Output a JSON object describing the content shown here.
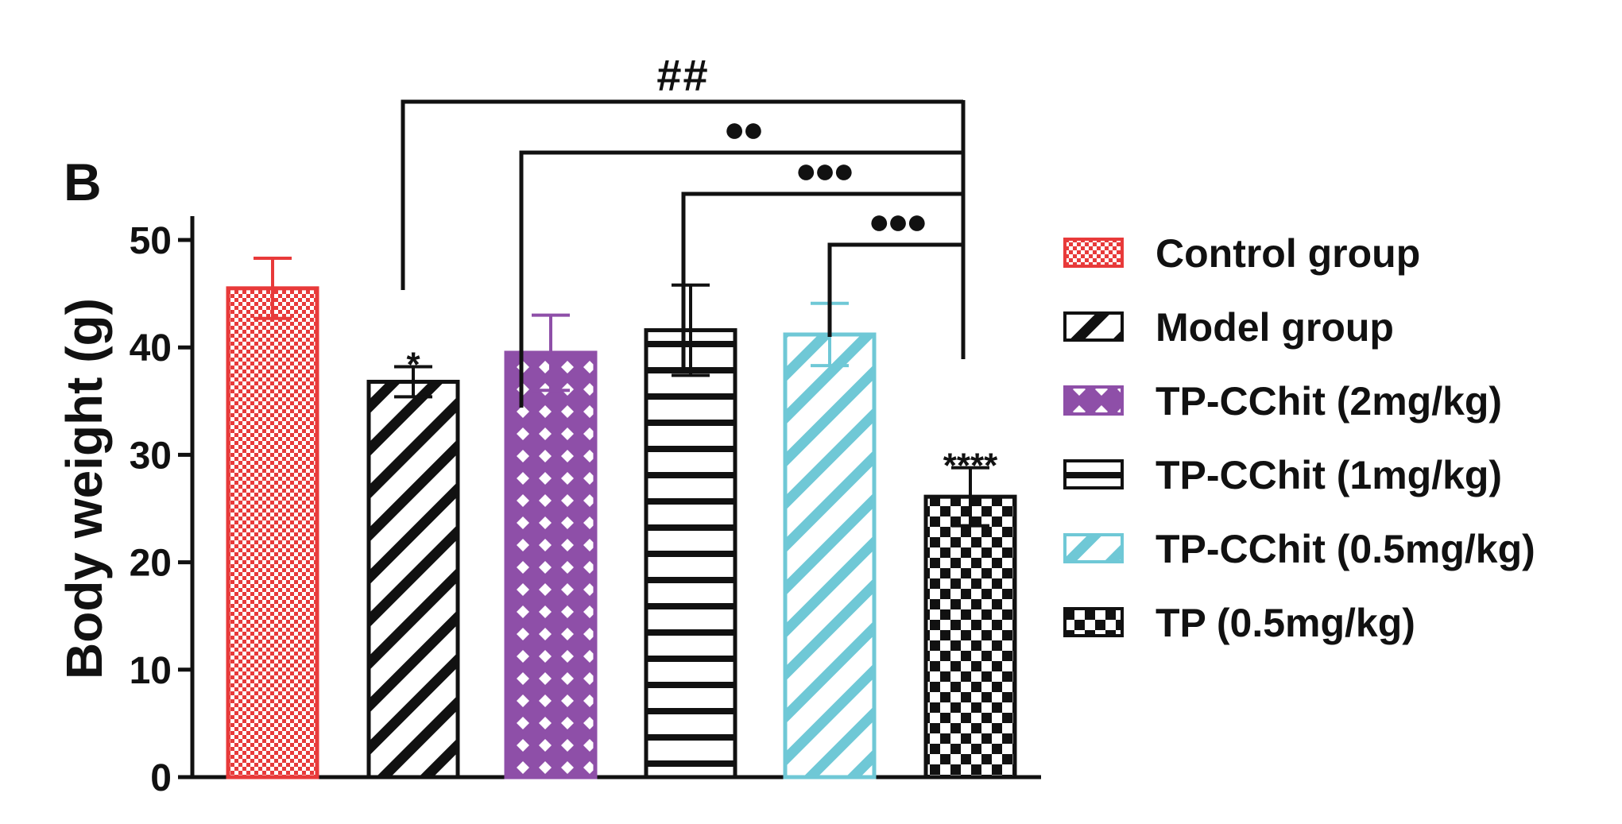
{
  "chart_data": {
    "type": "bar",
    "panel_label": "B",
    "title": "",
    "xlabel": "",
    "ylabel": "Body weight (g)",
    "ylim": [
      0,
      50
    ],
    "yticks": [
      0,
      10,
      20,
      30,
      40,
      50
    ],
    "grid": false,
    "legend_position": "right",
    "categories": [
      "Control group",
      "Model group",
      "TP-CChit (2mg/kg)",
      "TP-CChit (1mg/kg)",
      "TP-CChit (0.5mg/kg)",
      "TP (0.5mg/kg)"
    ],
    "values": [
      45.5,
      36.8,
      39.5,
      41.6,
      41.2,
      26.1
    ],
    "errors": [
      2.8,
      1.4,
      3.5,
      4.2,
      2.9,
      2.7
    ],
    "series_styles": [
      {
        "pattern": "small-checker",
        "color": "#e83a3a"
      },
      {
        "pattern": "diagonal",
        "color": "#111111"
      },
      {
        "pattern": "diamond-lattice",
        "color": "#8e4fa8"
      },
      {
        "pattern": "horizontal",
        "color": "#111111"
      },
      {
        "pattern": "diagonal",
        "color": "#6fc8d6"
      },
      {
        "pattern": "checker",
        "color": "#111111"
      }
    ],
    "bar_annotations": [
      {
        "bar": 1,
        "text": "*"
      },
      {
        "bar": 5,
        "text": "****"
      }
    ],
    "comparisons": [
      {
        "from": 1,
        "to": 5,
        "text": "##"
      },
      {
        "from": 2,
        "to": 5,
        "text": "●●"
      },
      {
        "from": 3,
        "to": 5,
        "text": "●●●"
      },
      {
        "from": 4,
        "to": 5,
        "text": "●●●"
      }
    ]
  }
}
